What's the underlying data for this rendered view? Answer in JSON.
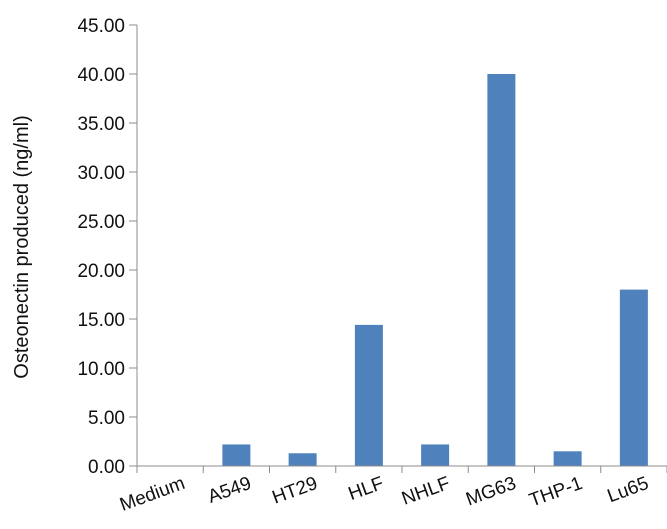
{
  "chart_data": {
    "type": "bar",
    "categories": [
      "Medium",
      "A549",
      "HT29",
      "HLF",
      "NHLF",
      "MG63",
      "THP-1",
      "Lu65"
    ],
    "values": [
      0.0,
      2.2,
      1.3,
      14.4,
      2.2,
      40.0,
      1.5,
      18.0
    ],
    "title": "",
    "xlabel": "",
    "ylabel": "Osteonectin produced (ng/ml)",
    "ylim": [
      0,
      45
    ],
    "y_ticks": [
      "0.00",
      "5.00",
      "10.00",
      "15.00",
      "20.00",
      "25.00",
      "30.00",
      "35.00",
      "40.00",
      "45.00"
    ],
    "bar_color": "#4f81bd",
    "grid": false,
    "legend": "none"
  }
}
